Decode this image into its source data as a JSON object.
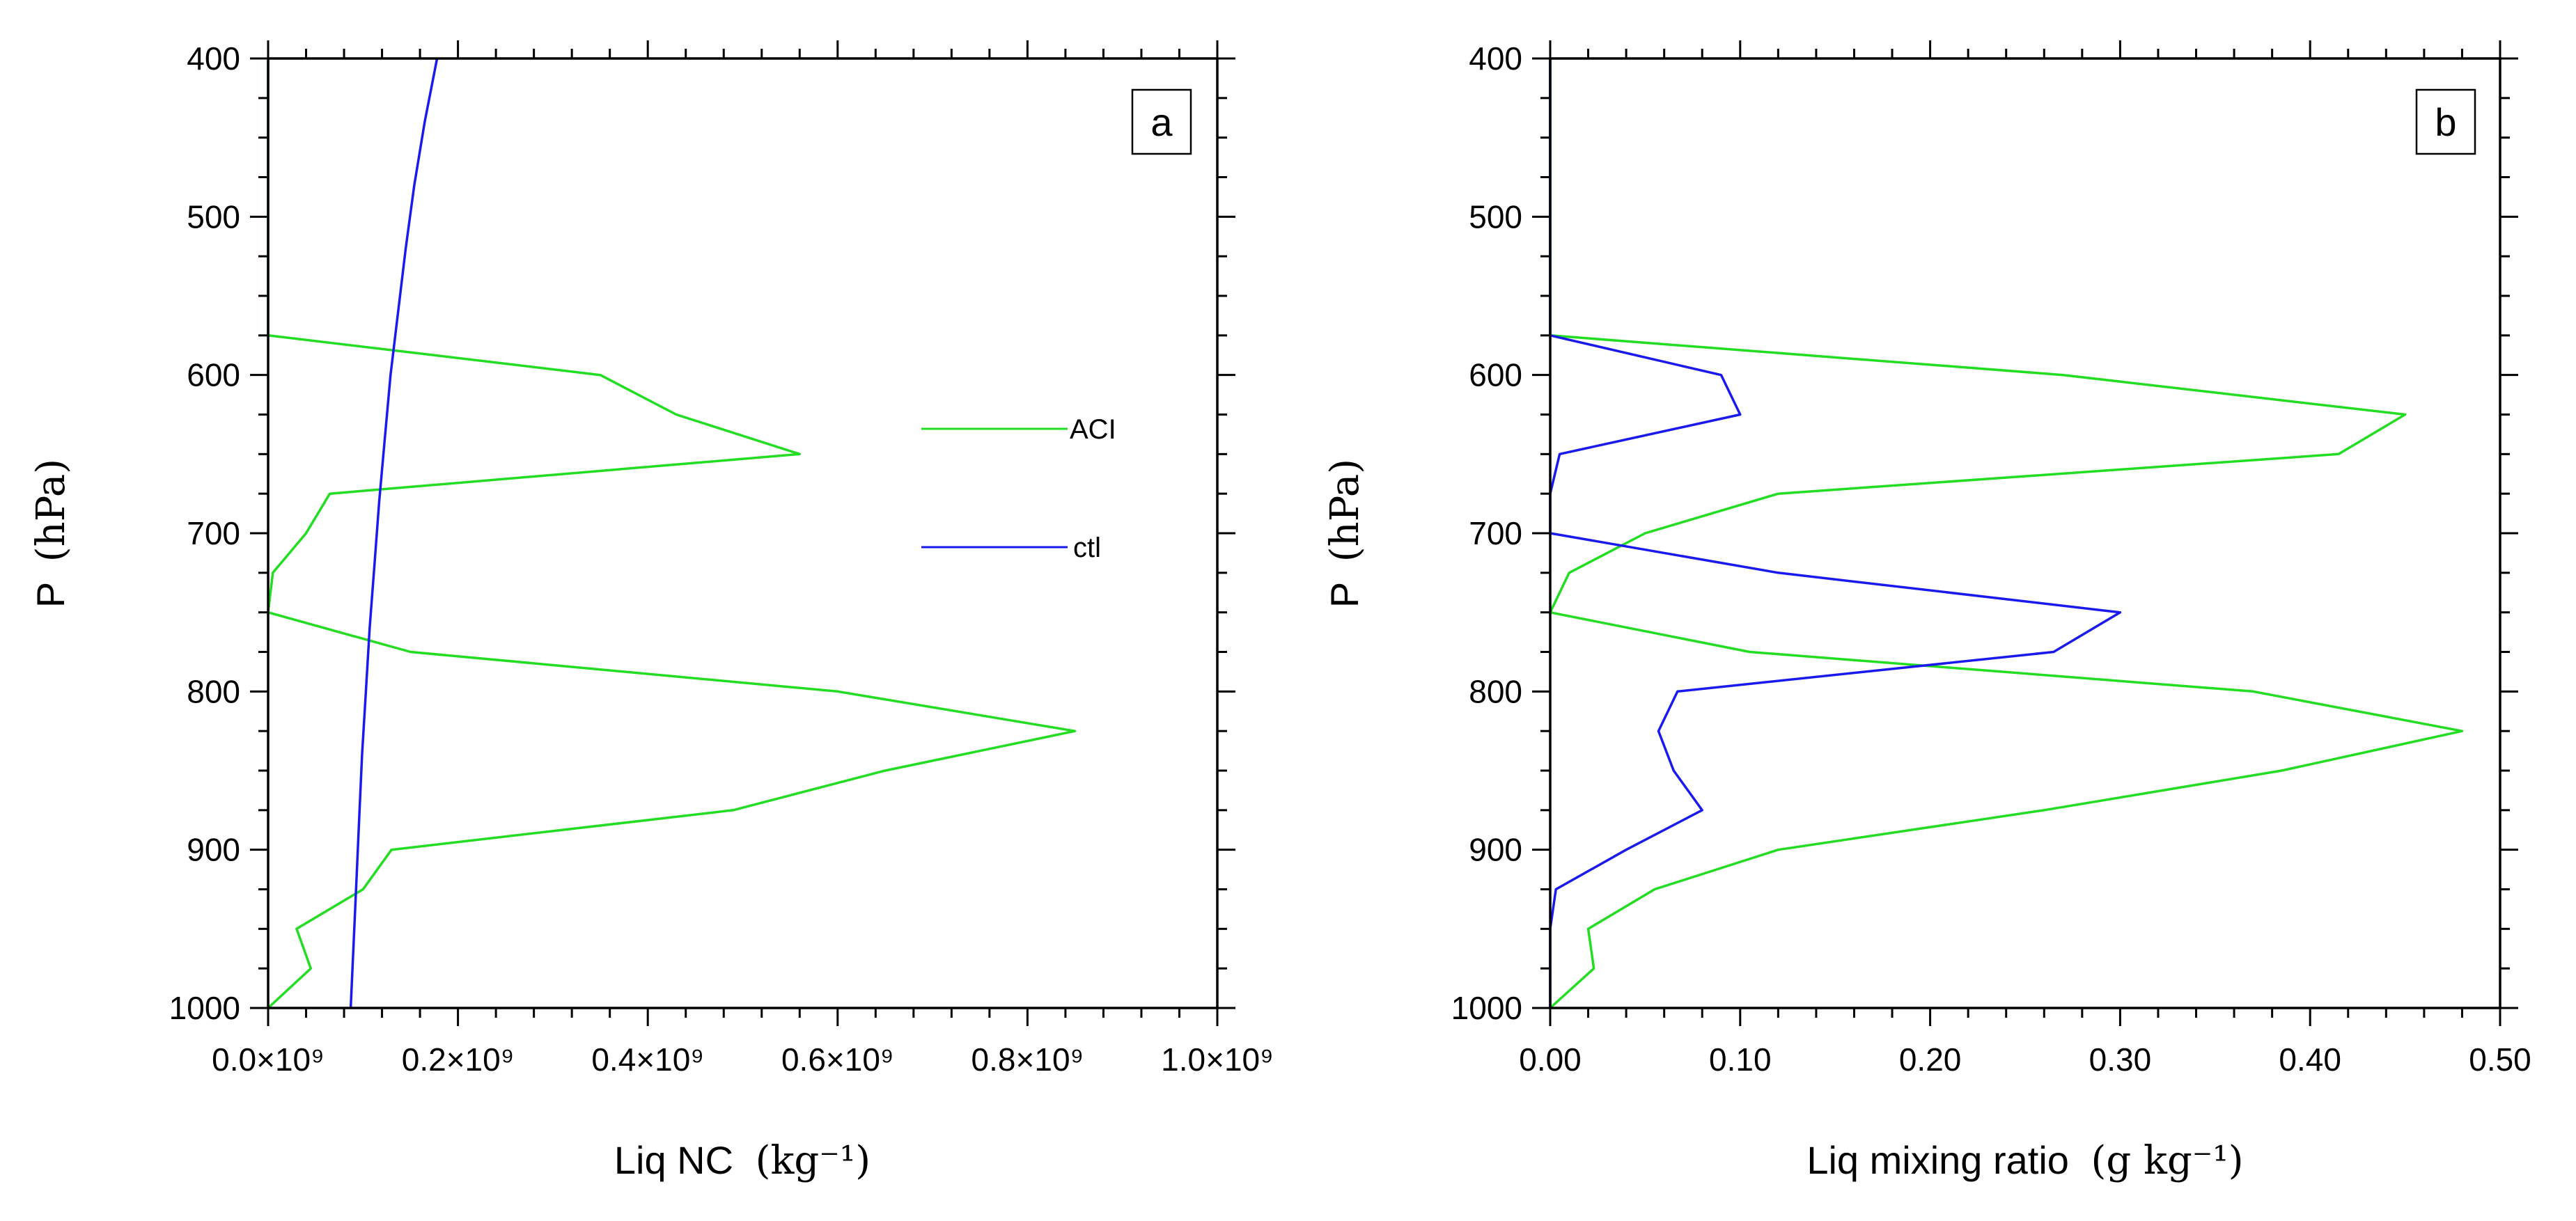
{
  "figure": {
    "legend": [
      {
        "name": "ACI",
        "color": "#22dd22"
      },
      {
        "name": "ctl",
        "color": "#1a1aee"
      }
    ]
  },
  "chart_data": [
    {
      "type": "line",
      "panel_label": "a",
      "xlabel_text": "Liq NC",
      "xlabel_units": "(kg⁻¹)",
      "ylabel_text": "P",
      "ylabel_units": "(hPa)",
      "xlim": [
        0,
        1.0
      ],
      "ylim": [
        1000,
        400
      ],
      "x_ticks": [
        0,
        0.2,
        0.4,
        0.6,
        0.8,
        1.0
      ],
      "x_tick_labels": [
        "0.0×10⁹",
        "0.2×10⁹",
        "0.4×10⁹",
        "0.6×10⁹",
        "0.8×10⁹",
        "1.0×10⁹"
      ],
      "y_ticks": [
        400,
        500,
        600,
        700,
        800,
        900,
        1000
      ],
      "y_tick_labels": [
        "400",
        "500",
        "600",
        "700",
        "800",
        "900",
        "1000"
      ],
      "x_unit_note": "x values in units of 1e9 kg-1",
      "series": [
        {
          "name": "ACI",
          "color": "#22dd22",
          "x": [
            0.0,
            0.0,
            0.35,
            0.43,
            0.56,
            0.065,
            0.04,
            0.005,
            0.0,
            0.15,
            0.6,
            0.85,
            0.65,
            0.49,
            0.13,
            0.1,
            0.03,
            0.045,
            0.0
          ],
          "y": [
            400,
            575,
            600,
            625,
            650,
            675,
            700,
            725,
            750,
            775,
            800,
            825,
            850,
            875,
            900,
            925,
            950,
            975,
            1000
          ]
        },
        {
          "name": "ctl",
          "color": "#1a1aee",
          "x": [
            0.178,
            0.165,
            0.154,
            0.145,
            0.137,
            0.129,
            0.123,
            0.117,
            0.112,
            0.107,
            0.103,
            0.099,
            0.096,
            0.093,
            0.09,
            0.087
          ],
          "y": [
            400,
            440,
            480,
            520,
            560,
            600,
            640,
            680,
            720,
            760,
            800,
            840,
            880,
            920,
            960,
            1000
          ]
        }
      ]
    },
    {
      "type": "line",
      "panel_label": "b",
      "xlabel_text": "Liq mixing ratio",
      "xlabel_units": "(g  kg⁻¹)",
      "ylabel_text": "P",
      "ylabel_units": "(hPa)",
      "xlim": [
        0,
        0.5
      ],
      "ylim": [
        1000,
        400
      ],
      "x_ticks": [
        0,
        0.1,
        0.2,
        0.3,
        0.4,
        0.5
      ],
      "x_tick_labels": [
        "0.00",
        "0.10",
        "0.20",
        "0.30",
        "0.40",
        "0.50"
      ],
      "y_ticks": [
        400,
        500,
        600,
        700,
        800,
        900,
        1000
      ],
      "y_tick_labels": [
        "400",
        "500",
        "600",
        "700",
        "800",
        "900",
        "1000"
      ],
      "series": [
        {
          "name": "ACI",
          "color": "#22dd22",
          "x": [
            0.0,
            0.0,
            0.27,
            0.45,
            0.415,
            0.12,
            0.05,
            0.01,
            0.0,
            0.105,
            0.37,
            0.48,
            0.385,
            0.26,
            0.12,
            0.055,
            0.02,
            0.023,
            0.0
          ],
          "y": [
            400,
            575,
            600,
            625,
            650,
            675,
            700,
            725,
            750,
            775,
            800,
            825,
            850,
            875,
            900,
            925,
            950,
            975,
            1000
          ]
        },
        {
          "name": "ctl",
          "color": "#1a1aee",
          "x": [
            0.0,
            0.0,
            0.09,
            0.1,
            0.005,
            0.0,
            0.0,
            0.12,
            0.3,
            0.265,
            0.067,
            0.057,
            0.065,
            0.08,
            0.04,
            0.003,
            0.0,
            0.0
          ],
          "y": [
            400,
            575,
            600,
            625,
            650,
            675,
            700,
            725,
            750,
            775,
            800,
            825,
            850,
            875,
            900,
            925,
            950,
            1000
          ]
        }
      ]
    }
  ]
}
